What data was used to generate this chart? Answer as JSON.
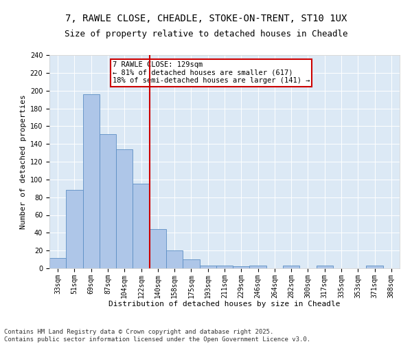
{
  "title_line1": "7, RAWLE CLOSE, CHEADLE, STOKE-ON-TRENT, ST10 1UX",
  "title_line2": "Size of property relative to detached houses in Cheadle",
  "xlabel": "Distribution of detached houses by size in Cheadle",
  "ylabel": "Number of detached properties",
  "categories": [
    "33sqm",
    "51sqm",
    "69sqm",
    "87sqm",
    "104sqm",
    "122sqm",
    "140sqm",
    "158sqm",
    "175sqm",
    "193sqm",
    "211sqm",
    "229sqm",
    "246sqm",
    "264sqm",
    "282sqm",
    "300sqm",
    "317sqm",
    "335sqm",
    "353sqm",
    "371sqm",
    "388sqm"
  ],
  "values": [
    12,
    88,
    196,
    151,
    134,
    95,
    44,
    20,
    10,
    3,
    3,
    2,
    3,
    0,
    3,
    0,
    3,
    0,
    0,
    3,
    0
  ],
  "bar_color": "#aec6e8",
  "bar_edge_color": "#5b8ec4",
  "vline_x": 5.5,
  "vline_color": "#cc0000",
  "annotation_text": "7 RAWLE CLOSE: 129sqm\n← 81% of detached houses are smaller (617)\n18% of semi-detached houses are larger (141) →",
  "annotation_box_color": "#cc0000",
  "annotation_text_color": "#000000",
  "ylim": [
    0,
    240
  ],
  "yticks": [
    0,
    20,
    40,
    60,
    80,
    100,
    120,
    140,
    160,
    180,
    200,
    220,
    240
  ],
  "background_color": "#dce9f5",
  "footer_line1": "Contains HM Land Registry data © Crown copyright and database right 2025.",
  "footer_line2": "Contains public sector information licensed under the Open Government Licence v3.0.",
  "title_fontsize": 10,
  "subtitle_fontsize": 9,
  "axis_label_fontsize": 8,
  "tick_fontsize": 7,
  "annotation_fontsize": 7.5,
  "footer_fontsize": 6.5
}
